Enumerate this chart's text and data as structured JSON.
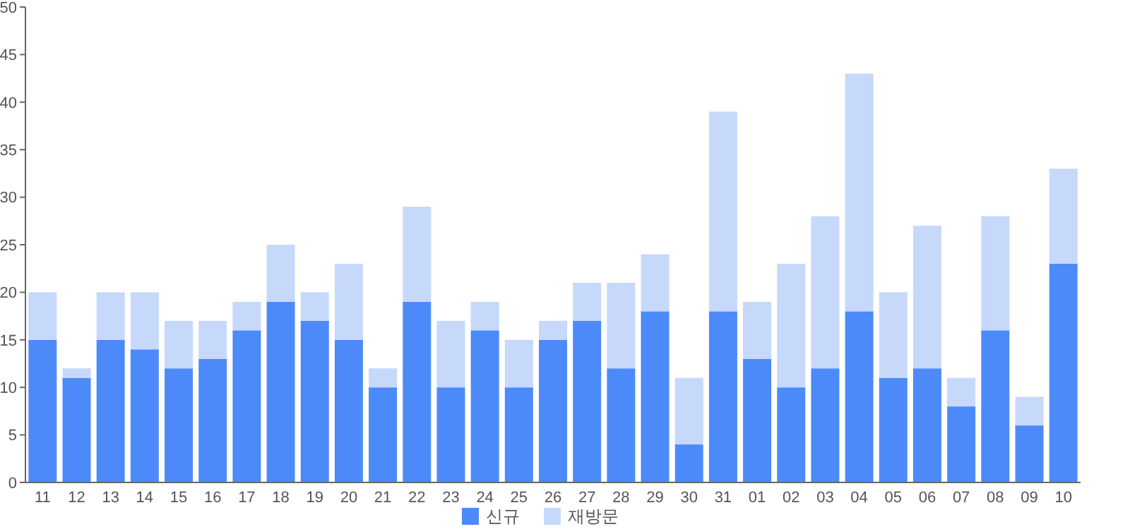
{
  "chart_data": {
    "type": "bar",
    "stacked": true,
    "categories": [
      "11",
      "12",
      "13",
      "14",
      "15",
      "16",
      "17",
      "18",
      "19",
      "20",
      "21",
      "22",
      "23",
      "24",
      "25",
      "26",
      "27",
      "28",
      "29",
      "30",
      "31",
      "01",
      "02",
      "03",
      "04",
      "05",
      "06",
      "07",
      "08",
      "09",
      "10"
    ],
    "series": [
      {
        "name": "신규",
        "color": "#4d8af9",
        "values": [
          15,
          11,
          15,
          14,
          12,
          13,
          16,
          19,
          17,
          15,
          10,
          19,
          10,
          16,
          10,
          15,
          17,
          12,
          18,
          4,
          18,
          13,
          10,
          12,
          18,
          11,
          12,
          8,
          16,
          6,
          23
        ]
      },
      {
        "name": "재방문",
        "color": "#c6d9fb",
        "values": [
          5,
          1,
          5,
          6,
          5,
          4,
          3,
          6,
          3,
          8,
          2,
          10,
          7,
          3,
          5,
          2,
          4,
          9,
          6,
          7,
          21,
          6,
          13,
          16,
          25,
          9,
          15,
          3,
          12,
          3,
          10
        ]
      }
    ],
    "ylim": [
      0,
      50
    ],
    "yticks": [
      0,
      5,
      10,
      15,
      20,
      25,
      30,
      35,
      40,
      45,
      50
    ],
    "grid": false,
    "legend": "bottom"
  }
}
